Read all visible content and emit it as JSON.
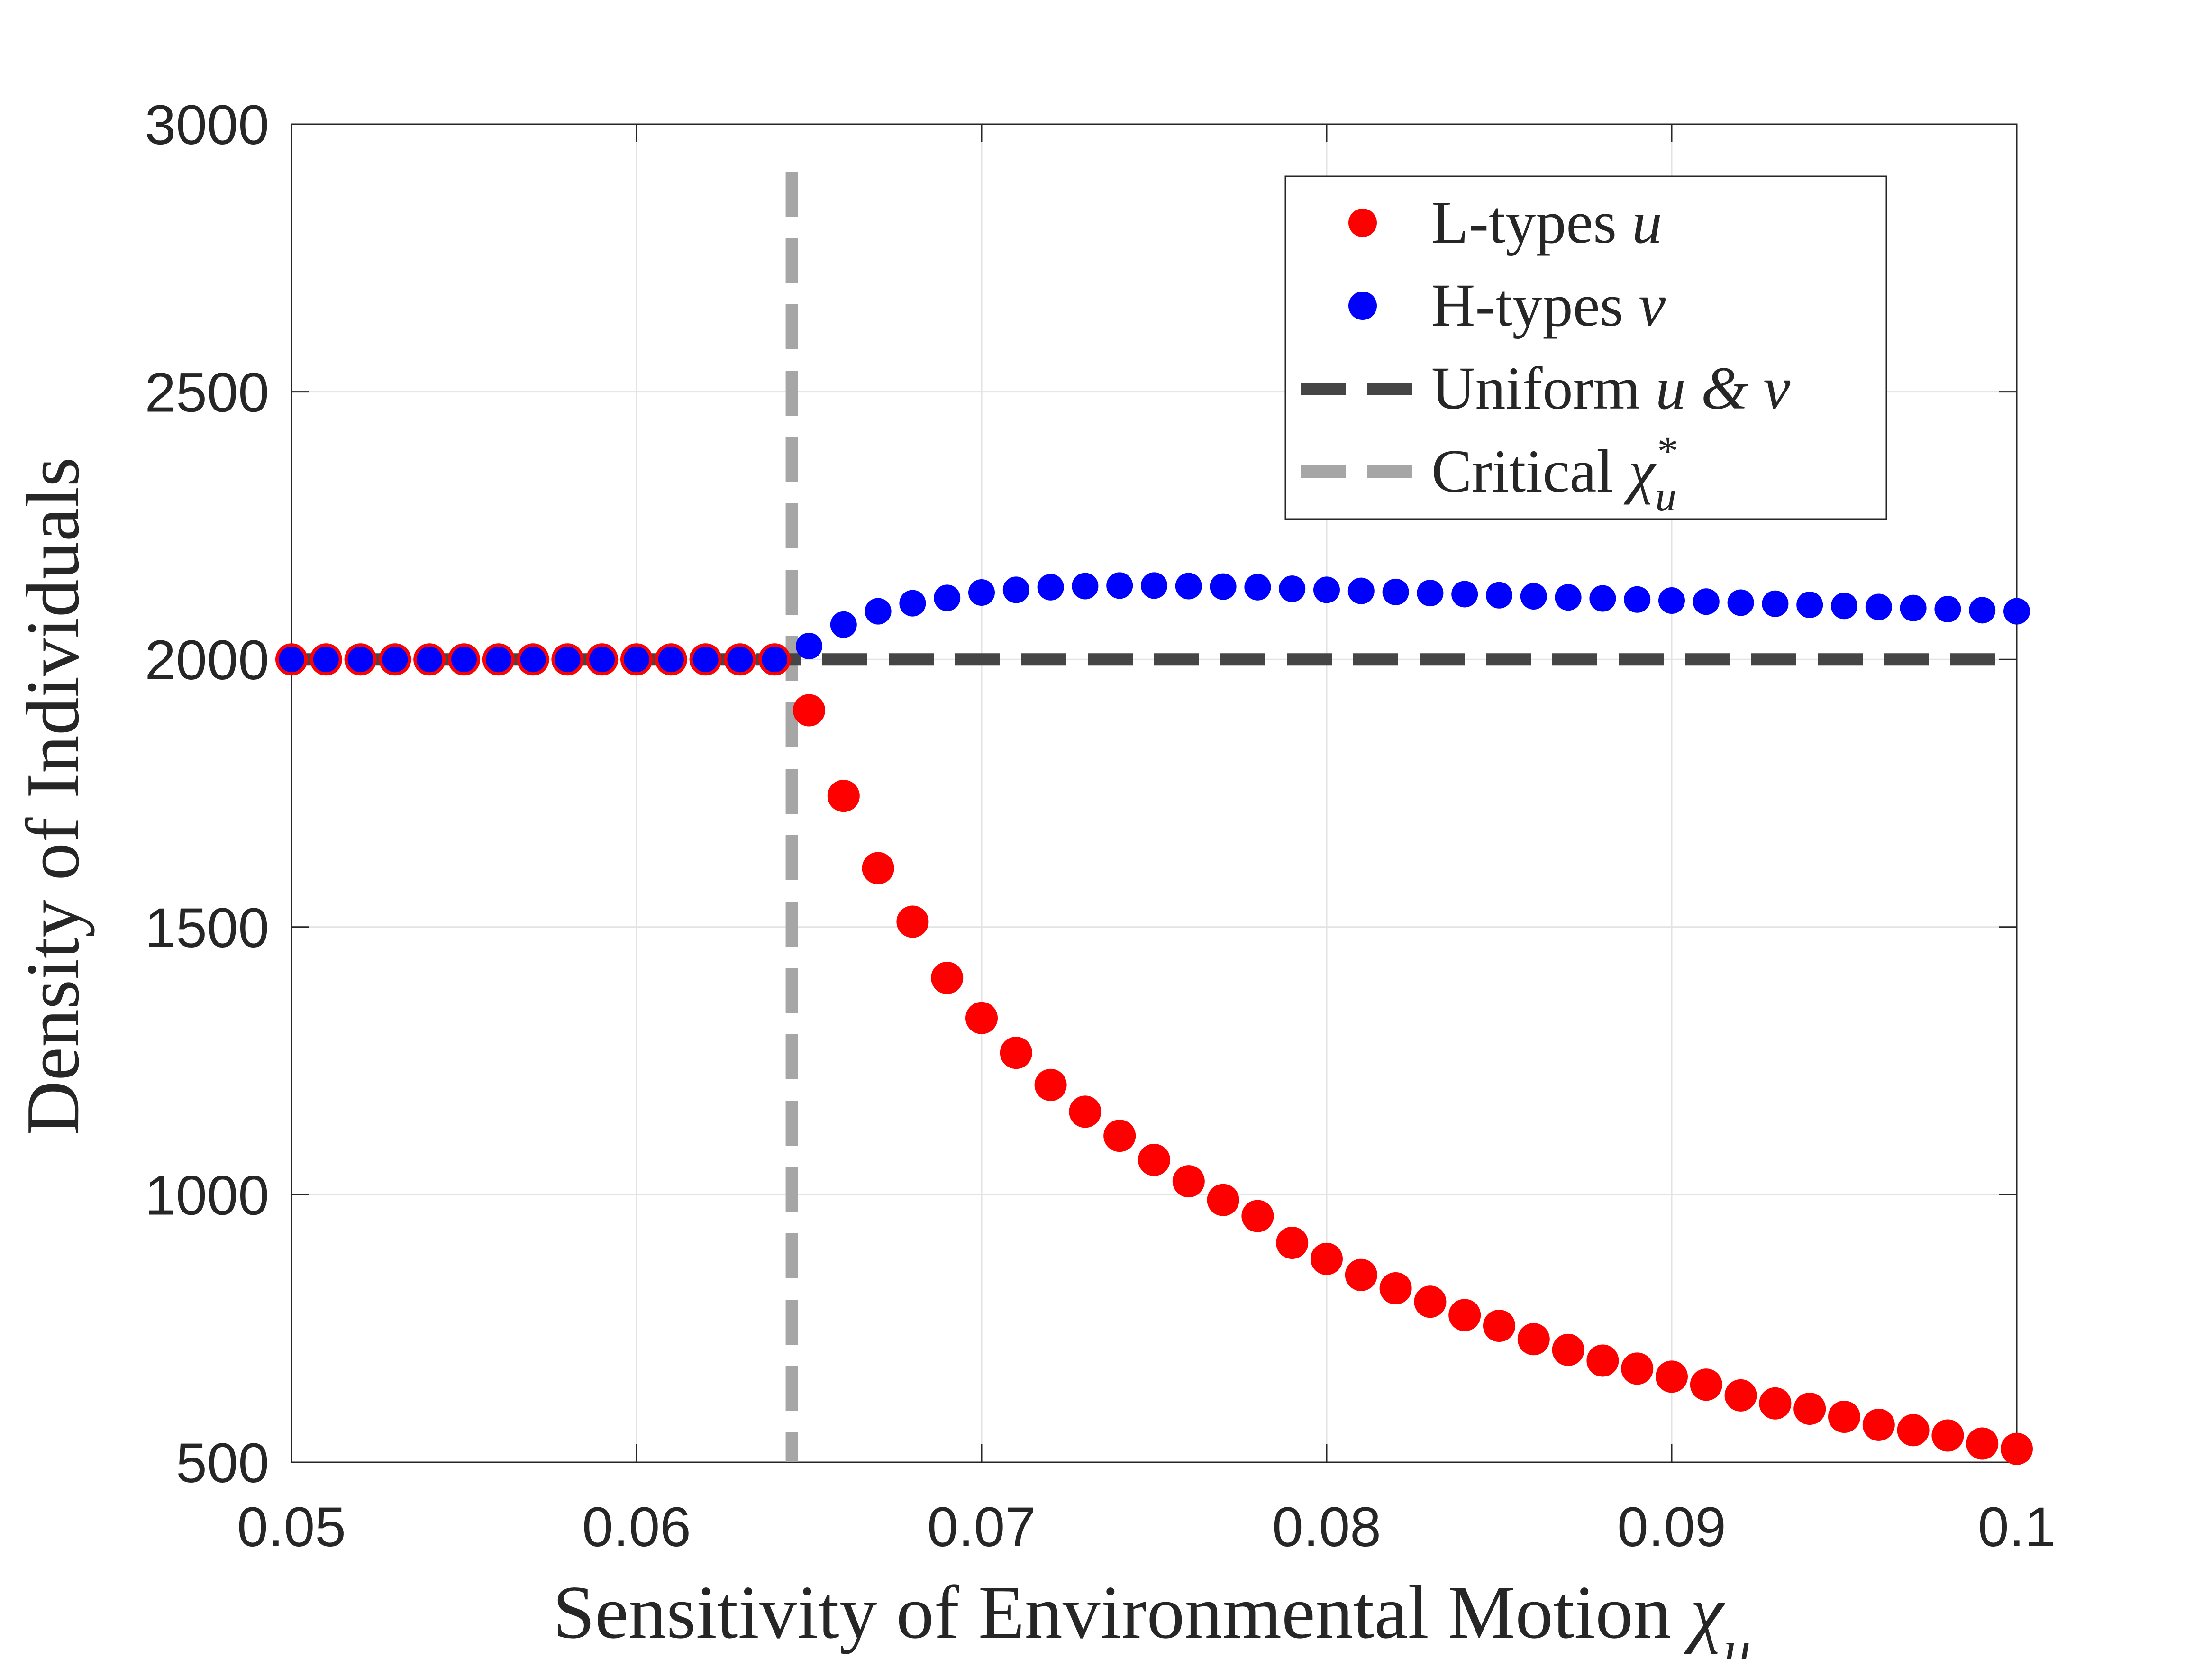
{
  "chart_data": {
    "type": "scatter",
    "title": "",
    "xlabel": "Sensitivity of Environmental Motion",
    "xlabel_symbol": "χ",
    "xlabel_subscript": "u",
    "ylabel": "Density of Individuals",
    "xlim": [
      0.05,
      0.1
    ],
    "ylim": [
      500,
      3000
    ],
    "xticks": [
      0.05,
      0.06,
      0.07,
      0.08,
      0.09,
      0.1
    ],
    "xtick_labels": [
      "0.05",
      "0.06",
      "0.07",
      "0.08",
      "0.09",
      "0.1"
    ],
    "yticks": [
      500,
      1000,
      1500,
      2000,
      2500,
      3000
    ],
    "ytick_labels": [
      "500",
      "1000",
      "1500",
      "2000",
      "2500",
      "3000"
    ],
    "grid": true,
    "legend_position": "top-right",
    "colors": {
      "l_types": "#ff0000",
      "h_types": "#0000ff",
      "uniform": "#454545",
      "critical": "#a6a6a6",
      "axis": "#262626",
      "grid": "#e3e3e3"
    },
    "x": [
      0.05,
      0.051,
      0.052,
      0.053,
      0.054,
      0.055,
      0.056,
      0.057,
      0.058,
      0.059,
      0.06,
      0.061,
      0.062,
      0.063,
      0.064,
      0.065,
      0.066,
      0.067,
      0.068,
      0.069,
      0.07,
      0.071,
      0.072,
      0.073,
      0.074,
      0.075,
      0.076,
      0.077,
      0.078,
      0.079,
      0.08,
      0.081,
      0.082,
      0.083,
      0.084,
      0.085,
      0.086,
      0.087,
      0.088,
      0.089,
      0.09,
      0.091,
      0.092,
      0.093,
      0.094,
      0.095,
      0.096,
      0.097,
      0.098,
      0.099,
      0.1
    ],
    "series": [
      {
        "name": "L-types",
        "symbol": "u",
        "marker": "circle",
        "values": [
          2000,
          2000,
          2000,
          2000,
          2000,
          2000,
          2000,
          2000,
          2000,
          2000,
          2000,
          2000,
          2000,
          2000,
          2000,
          1905,
          1745,
          1610,
          1510,
          1405,
          1330,
          1265,
          1205,
          1155,
          1110,
          1065,
          1025,
          990,
          960,
          910,
          880,
          850,
          825,
          800,
          775,
          755,
          730,
          710,
          690,
          675,
          660,
          645,
          625,
          610,
          600,
          585,
          570,
          560,
          550,
          535,
          525
        ]
      },
      {
        "name": "H-types",
        "symbol": "v",
        "marker": "circle",
        "values": [
          2000,
          2000,
          2000,
          2000,
          2000,
          2000,
          2000,
          2000,
          2000,
          2000,
          2000,
          2000,
          2000,
          2000,
          2000,
          2025,
          2065,
          2090,
          2105,
          2115,
          2125,
          2130,
          2135,
          2137,
          2138,
          2138,
          2137,
          2136,
          2135,
          2132,
          2130,
          2128,
          2126,
          2124,
          2122,
          2120,
          2118,
          2116,
          2114,
          2112,
          2110,
          2108,
          2106,
          2104,
          2102,
          2100,
          2098,
          2096,
          2094,
          2092,
          2090
        ]
      }
    ],
    "reference_lines": [
      {
        "name": "Uniform",
        "symbol": "u & v",
        "orientation": "horizontal",
        "value": 2000,
        "style": "dashed"
      },
      {
        "name": "Critical",
        "symbol": "χ",
        "sub": "u",
        "sup": "*",
        "orientation": "vertical",
        "value": 0.0645,
        "style": "dashed"
      }
    ],
    "legend": [
      {
        "label": "L-types",
        "math": "u"
      },
      {
        "label": "H-types",
        "math": "v"
      },
      {
        "label": "Uniform",
        "math": "u & v"
      },
      {
        "label": "Critical",
        "math": "χ",
        "sub": "u",
        "sup": "*"
      }
    ]
  }
}
